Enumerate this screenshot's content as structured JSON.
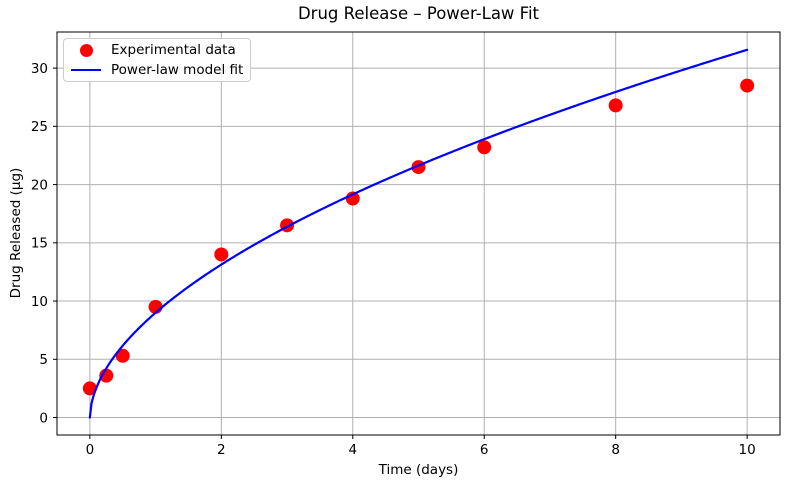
{
  "chart_data": {
    "type": "scatter",
    "title": "Drug Release – Power-Law Fit",
    "xlabel": "Time (days)",
    "ylabel": "Drug Released (µg)",
    "xlim": [
      -0.5,
      10.5
    ],
    "ylim": [
      -1.5,
      33.1
    ],
    "xticks": [
      0,
      2,
      4,
      6,
      8,
      10
    ],
    "yticks": [
      0,
      5,
      10,
      15,
      20,
      25,
      30
    ],
    "grid": true,
    "grid_color": "#b0b0b0",
    "background_color": "#ffffff",
    "spine_color": "#000000",
    "series": [
      {
        "name": "Experimental data",
        "type": "scatter",
        "color": "#ff0000",
        "marker": "circle",
        "x": [
          0,
          0.25,
          0.5,
          1,
          2,
          3,
          4,
          5,
          6,
          8,
          10
        ],
        "y": [
          2.5,
          3.6,
          5.3,
          9.5,
          14.0,
          16.5,
          18.8,
          21.5,
          23.2,
          26.8,
          28.5
        ]
      },
      {
        "name": "Power-law model fit",
        "type": "line",
        "color": "#0000ff",
        "model": "y = a * t^b",
        "a": 9.0,
        "b": 0.545,
        "t_min": 0,
        "t_max": 10,
        "y_at_t_max": 31.5
      }
    ],
    "legend": {
      "position": "upper left",
      "entries": [
        "Experimental data",
        "Power-law model fit"
      ]
    }
  }
}
